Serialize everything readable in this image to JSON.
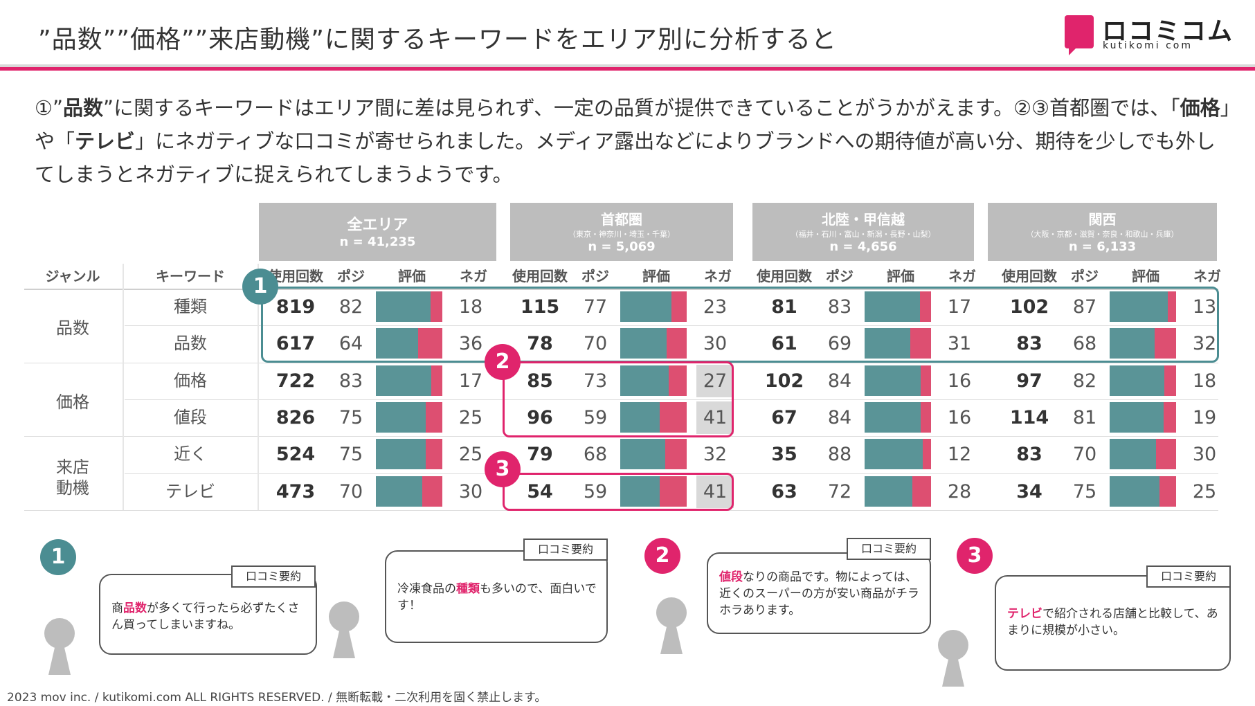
{
  "header": {
    "title": "”品数””価格””来店動機”に関するキーワードをエリア別に分析すると",
    "logo_text": "ロコミコム",
    "logo_sub": "kutikomi com",
    "accent": "#e0246c"
  },
  "intro": {
    "p1": "①”",
    "b1": "品数",
    "p2": "”に関するキーワードはエリア間に差は見られず、一定の品質が提供できていることがうかがえます。②③首都圏では、「",
    "b2": "価格",
    "p3": "」や「",
    "b3": "テレビ",
    "p4": "」にネガティブな口コミが寄せられました。メディア露出などによりブランドへの期待値が高い分、期待を少しでも外してしまうとネガティブに捉えられてしまうようです。"
  },
  "table": {
    "col_genre": "ジャンル",
    "col_keyword": "キーワード",
    "col_count": "使用回数",
    "col_pos": "ポジ",
    "col_eval": "評価",
    "col_neg": "ネガ",
    "areas": [
      {
        "name": "全エリア",
        "sub": "",
        "n": "n = 41,235"
      },
      {
        "name": "首都圏",
        "sub": "（東京・神奈川・埼玉・千葉）",
        "n": "n = 5,069"
      },
      {
        "name": "北陸・甲信越",
        "sub": "（福井・石川・富山・新潟・長野・山梨）",
        "n": "n = 4,656"
      },
      {
        "name": "関西",
        "sub": "（大阪・京都・滋賀・奈良・和歌山・兵庫）",
        "n": "n = 6,133"
      }
    ],
    "genres": [
      "品数",
      "価格",
      "来店\n動機"
    ],
    "rows": [
      {
        "keyword": "種類",
        "data": [
          [
            819,
            82,
            18
          ],
          [
            115,
            77,
            23
          ],
          [
            81,
            83,
            17
          ],
          [
            102,
            87,
            13
          ]
        ]
      },
      {
        "keyword": "品数",
        "data": [
          [
            617,
            64,
            36
          ],
          [
            78,
            70,
            30
          ],
          [
            61,
            69,
            31
          ],
          [
            83,
            68,
            32
          ]
        ]
      },
      {
        "keyword": "価格",
        "data": [
          [
            722,
            83,
            17
          ],
          [
            85,
            73,
            27
          ],
          [
            102,
            84,
            16
          ],
          [
            97,
            82,
            18
          ]
        ]
      },
      {
        "keyword": "値段",
        "data": [
          [
            826,
            75,
            25
          ],
          [
            96,
            59,
            41
          ],
          [
            67,
            84,
            16
          ],
          [
            114,
            81,
            19
          ]
        ]
      },
      {
        "keyword": "近く",
        "data": [
          [
            524,
            75,
            25
          ],
          [
            79,
            68,
            32
          ],
          [
            35,
            88,
            12
          ],
          [
            83,
            70,
            30
          ]
        ]
      },
      {
        "keyword": "テレビ",
        "data": [
          [
            473,
            70,
            30
          ],
          [
            54,
            59,
            41
          ],
          [
            63,
            72,
            28
          ],
          [
            34,
            75,
            25
          ]
        ]
      }
    ],
    "highlight_neg": [
      [
        2,
        1
      ],
      [
        3,
        1
      ],
      [
        5,
        1
      ]
    ],
    "colors": {
      "pos": "#5a9497",
      "neg": "#dd4f71",
      "teal": "#4b8d92",
      "pink": "#e0246c"
    }
  },
  "markers": {
    "m1": "1",
    "m2": "2",
    "m3": "3"
  },
  "comments": {
    "tag": "口コミ要約",
    "c1a": {
      "pre": "商",
      "hl": "品数",
      "post": "が多くて行ったら必ずたくさん買ってしまいますね。"
    },
    "c1b": {
      "pre": "冷凍食品の",
      "hl": "種類",
      "post": "も多いので、面白いです！"
    },
    "c2": {
      "pre": "",
      "hl": "値段",
      "post": "なりの商品です。物によっては、近くのスーパーの方が安い商品がチラホラあります。"
    },
    "c3": {
      "pre": "",
      "hl": "テレビ",
      "post": "で紹介される店舗と比較して、あまりに規模が小さい。"
    }
  },
  "footer": "2023 mov inc. / kutikomi.com ALL RIGHTS RESERVED. / 無断転載・二次利用を固く禁止します。"
}
